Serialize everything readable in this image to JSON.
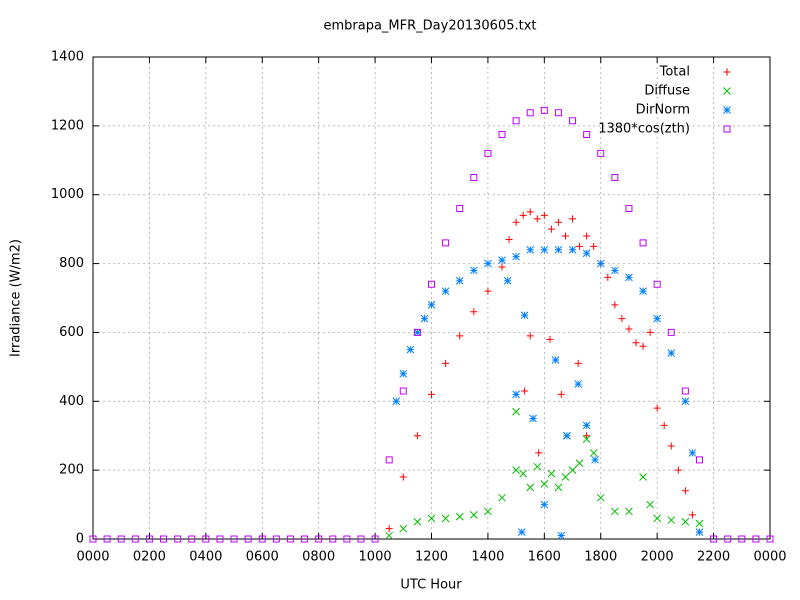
{
  "chart_data": {
    "type": "scatter",
    "title": "embrapa_MFR_Day20130605.txt",
    "xlabel": "UTC Hour",
    "ylabel": "Irradiance (W/m2)",
    "xlim": [
      0,
      24
    ],
    "ylim": [
      0,
      1400
    ],
    "xticks": [
      {
        "value": 0,
        "label": "0000"
      },
      {
        "value": 2,
        "label": "0200"
      },
      {
        "value": 4,
        "label": "0400"
      },
      {
        "value": 6,
        "label": "0600"
      },
      {
        "value": 8,
        "label": "0800"
      },
      {
        "value": 10,
        "label": "1000"
      },
      {
        "value": 12,
        "label": "1200"
      },
      {
        "value": 14,
        "label": "1400"
      },
      {
        "value": 16,
        "label": "1600"
      },
      {
        "value": 18,
        "label": "1800"
      },
      {
        "value": 20,
        "label": "2000"
      },
      {
        "value": 22,
        "label": "2200"
      },
      {
        "value": 24,
        "label": "0000"
      }
    ],
    "yticks": [
      0,
      200,
      400,
      600,
      800,
      1000,
      1200,
      1400
    ],
    "grid": true,
    "legend": "top-right",
    "series": [
      {
        "name": "Total",
        "color": "#ff0000",
        "marker": "plus",
        "x": [
          10.5,
          11.0,
          11.5,
          12.0,
          12.5,
          13.0,
          13.5,
          14.0,
          14.5,
          14.75,
          15.0,
          15.25,
          15.5,
          15.75,
          16.0,
          16.25,
          16.5,
          16.75,
          17.0,
          17.25,
          17.5,
          17.75,
          18.0,
          18.25,
          18.5,
          18.75,
          19.0,
          19.25,
          19.5,
          19.75,
          20.0,
          20.25,
          20.5,
          20.75,
          21.0,
          21.25,
          21.5,
          15.5,
          15.3,
          16.2,
          16.6,
          17.2,
          17.5,
          15.8
        ],
        "values": [
          30,
          180,
          300,
          420,
          510,
          590,
          660,
          720,
          790,
          870,
          920,
          940,
          950,
          930,
          940,
          900,
          920,
          880,
          930,
          850,
          880,
          850,
          800,
          760,
          680,
          640,
          610,
          570,
          560,
          600,
          380,
          330,
          270,
          200,
          140,
          70,
          20,
          590,
          430,
          580,
          420,
          510,
          300,
          250
        ]
      },
      {
        "name": "Diffuse",
        "color": "#00c000",
        "marker": "cross",
        "x": [
          10.5,
          11.0,
          11.5,
          12.0,
          12.5,
          13.0,
          13.5,
          14.0,
          14.5,
          15.0,
          15.25,
          15.5,
          15.75,
          16.0,
          16.25,
          16.5,
          16.75,
          17.0,
          17.25,
          17.5,
          17.75,
          18.0,
          18.5,
          19.0,
          19.5,
          19.75,
          20.0,
          20.5,
          21.0,
          21.5,
          15.0,
          16.8
        ],
        "values": [
          10,
          30,
          50,
          60,
          60,
          65,
          70,
          80,
          120,
          200,
          190,
          150,
          210,
          160,
          190,
          150,
          180,
          200,
          220,
          290,
          250,
          120,
          80,
          80,
          180,
          100,
          60,
          55,
          50,
          45,
          370,
          300
        ]
      },
      {
        "name": "DirNorm",
        "color": "#0080ff",
        "marker": "star",
        "x": [
          10.75,
          11.0,
          11.25,
          11.5,
          11.75,
          12.0,
          12.5,
          13.0,
          13.5,
          14.0,
          14.5,
          15.0,
          15.5,
          16.0,
          16.5,
          17.0,
          17.5,
          18.0,
          18.5,
          19.0,
          19.5,
          20.0,
          20.5,
          21.0,
          21.25,
          21.5,
          15.0,
          15.3,
          15.6,
          16.0,
          16.4,
          16.8,
          17.2,
          15.2,
          16.6,
          17.5,
          14.7,
          17.8
        ],
        "values": [
          400,
          480,
          550,
          600,
          640,
          680,
          720,
          750,
          780,
          800,
          810,
          820,
          840,
          840,
          840,
          840,
          830,
          800,
          780,
          760,
          720,
          640,
          540,
          400,
          250,
          20,
          420,
          650,
          350,
          100,
          520,
          300,
          450,
          20,
          10,
          330,
          750,
          230
        ]
      },
      {
        "name": "1380*cos(zth)",
        "color": "#c000ff",
        "marker": "square",
        "x": [
          0,
          0.5,
          1,
          1.5,
          2,
          2.5,
          3,
          3.5,
          4,
          4.5,
          5,
          5.5,
          6,
          6.5,
          7,
          7.5,
          8,
          8.5,
          9,
          9.5,
          10.0,
          10.5,
          11.0,
          11.5,
          12.0,
          12.5,
          13.0,
          13.5,
          14.0,
          14.5,
          15.0,
          15.5,
          16.0,
          16.5,
          17.0,
          17.5,
          18.0,
          18.5,
          19.0,
          19.5,
          20.0,
          20.5,
          21.0,
          21.5,
          22.0,
          22.5,
          23,
          23.5,
          24
        ],
        "values": [
          0,
          0,
          0,
          0,
          0,
          0,
          0,
          0,
          0,
          0,
          0,
          0,
          0,
          0,
          0,
          0,
          0,
          0,
          0,
          0,
          0,
          230,
          430,
          600,
          740,
          860,
          960,
          1050,
          1120,
          1175,
          1215,
          1238,
          1245,
          1238,
          1215,
          1175,
          1120,
          1050,
          960,
          860,
          740,
          600,
          430,
          230,
          0,
          0,
          0,
          0,
          0
        ]
      }
    ]
  }
}
